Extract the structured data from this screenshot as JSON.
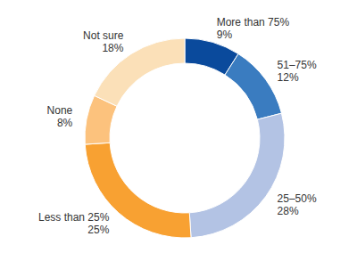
{
  "chart_data": {
    "type": "pie",
    "categories": [
      "More than 75%",
      "51–75%",
      "25–50%",
      "Less than 25%",
      "None",
      "Not sure"
    ],
    "values": [
      9,
      12,
      28,
      25,
      8,
      18
    ],
    "value_labels": [
      "9%",
      "12%",
      "28%",
      "25%",
      "8%",
      "18%"
    ],
    "colors": [
      "#0a4a9c",
      "#3a7cc0",
      "#b3c3e4",
      "#f8a132",
      "#fcc27d",
      "#fbe0b8"
    ],
    "data_labels": true
  }
}
